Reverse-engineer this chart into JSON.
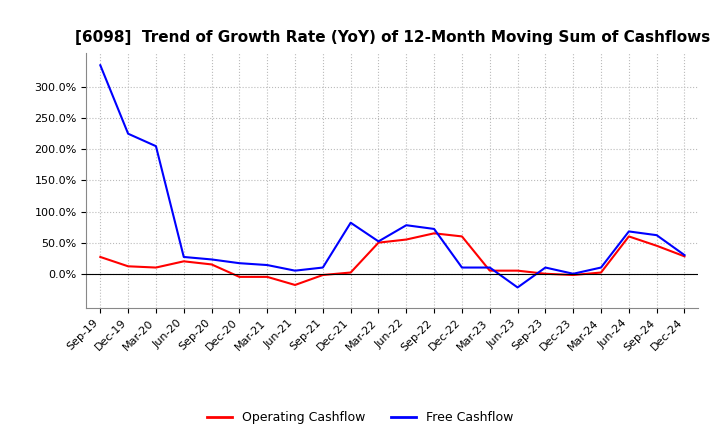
{
  "title": "[6098]  Trend of Growth Rate (YoY) of 12-Month Moving Sum of Cashflows",
  "x_labels": [
    "Sep-19",
    "Dec-19",
    "Mar-20",
    "Jun-20",
    "Sep-20",
    "Dec-20",
    "Mar-21",
    "Jun-21",
    "Sep-21",
    "Dec-21",
    "Mar-22",
    "Jun-22",
    "Sep-22",
    "Dec-22",
    "Mar-23",
    "Jun-23",
    "Sep-23",
    "Dec-23",
    "Mar-24",
    "Jun-24",
    "Sep-24",
    "Dec-24"
  ],
  "operating_cashflow": [
    0.27,
    0.12,
    0.1,
    0.2,
    0.15,
    -0.05,
    -0.05,
    -0.18,
    -0.02,
    0.02,
    0.5,
    0.55,
    0.65,
    0.6,
    0.05,
    0.05,
    0.0,
    -0.02,
    0.02,
    0.6,
    0.45,
    0.28
  ],
  "free_cashflow": [
    3.35,
    2.25,
    2.05,
    0.27,
    0.23,
    0.17,
    0.14,
    0.05,
    0.1,
    0.82,
    0.52,
    0.78,
    0.72,
    0.1,
    0.1,
    -0.22,
    0.1,
    0.0,
    0.1,
    0.68,
    0.62,
    0.3
  ],
  "operating_color": "#FF0000",
  "free_color": "#0000FF",
  "ylim_min": -0.55,
  "ylim_max": 3.55,
  "yticks": [
    0.0,
    0.5,
    1.0,
    1.5,
    2.0,
    2.5,
    3.0
  ],
  "background_color": "#FFFFFF",
  "grid_color": "#AAAAAA",
  "title_fontsize": 11,
  "tick_fontsize": 8,
  "legend_fontsize": 9,
  "linewidth": 1.5
}
